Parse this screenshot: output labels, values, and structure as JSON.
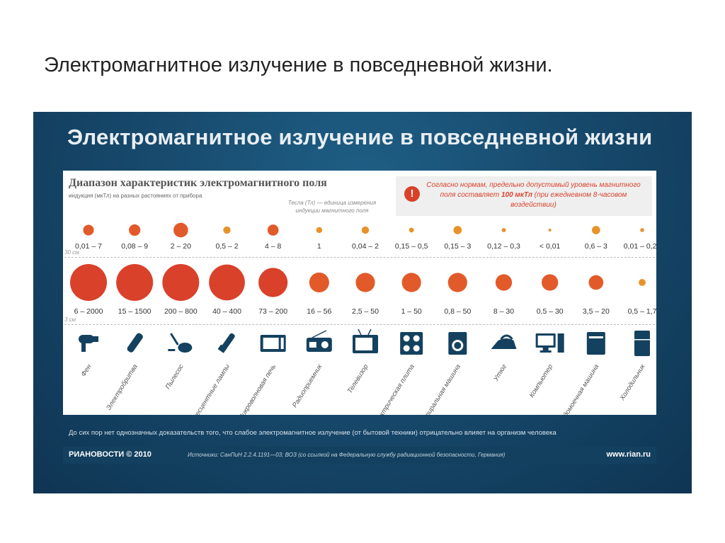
{
  "slide": {
    "title": "Электромагнитное излучение в повседневной жизни."
  },
  "infographic": {
    "title": "Электромагнитное излучение в повседневной жизни",
    "section_title": "Диапазон характеристик электромагнитного поля",
    "section_subtitle": "индукция (мкТл) на разных растояниях от прибора",
    "tesla_note": "Тесла (Тл) — единица измерения индукции магнитного поля",
    "note": {
      "text_before": "Согласно нормам, предельно допустимый уровень магнитного поля составляет",
      "value": "100 мкТл",
      "text_after": "(при ежедневном 8-часовом воздействии)",
      "icon": "exclamation-icon",
      "color": "#d9412b"
    },
    "distance_far": "30 см",
    "distance_near": "3 см",
    "footer_text": "До сих пор нет однозначных доказательств того, что слабое электромагнитное излучение (от бытовой техники) отрицательно влияет на организм человека",
    "credit": "РИАНОВОСТИ © 2010",
    "sources": "Источники: СанПиН 2.2.4.1191—03; ВОЗ (со ссылкой на Федеральную службу радиационной безопасности, Германия)",
    "site": "www.rian.ru"
  },
  "chart_data": {
    "type": "bubble",
    "unit": "мкТл",
    "categories": [
      "Фен",
      "Электробритва",
      "Пылесос",
      "Люминесцентные лампы",
      "Микроволновая печь",
      "Радиоприемник",
      "Телевизор",
      "Электрическая плита",
      "Стиральная машина",
      "Утюг",
      "Компьютер",
      "Посудомоечная машина",
      "Холодильник"
    ],
    "icons": [
      "hair-dryer-icon",
      "shaver-icon",
      "vacuum-cleaner-icon",
      "fluorescent-lamp-icon",
      "microwave-icon",
      "radio-icon",
      "tv-icon",
      "electric-stove-icon",
      "washing-machine-icon",
      "iron-icon",
      "computer-icon",
      "dishwasher-icon",
      "fridge-icon"
    ],
    "series": [
      {
        "name": "30 см",
        "labels": [
          "0,01 – 7",
          "0,08 – 9",
          "2 – 20",
          "0,5 – 2",
          "4 – 8",
          "1",
          "0,04 – 2",
          "0,15 – 0,5",
          "0,15 – 3",
          "0,12 – 0,3",
          "< 0,01",
          "0,6 – 3",
          "0,01 – 0,25"
        ],
        "max": [
          7,
          9,
          20,
          2,
          8,
          1,
          2,
          0.5,
          3,
          0.3,
          0.01,
          3,
          0.25
        ]
      },
      {
        "name": "3 см",
        "labels": [
          "6 – 2000",
          "15 – 1500",
          "200 – 800",
          "40 – 400",
          "73 – 200",
          "16 – 56",
          "2,5 – 50",
          "1 – 50",
          "0,8 – 50",
          "8 – 30",
          "0,5 – 30",
          "3,5 – 20",
          "0,5 – 1,7"
        ],
        "max": [
          2000,
          1500,
          800,
          400,
          200,
          56,
          50,
          50,
          50,
          30,
          30,
          20,
          1.7
        ]
      }
    ],
    "colors": {
      "bubble": "#d9412b",
      "bubble_small": "#e8922a",
      "icon": "#14415f"
    }
  }
}
